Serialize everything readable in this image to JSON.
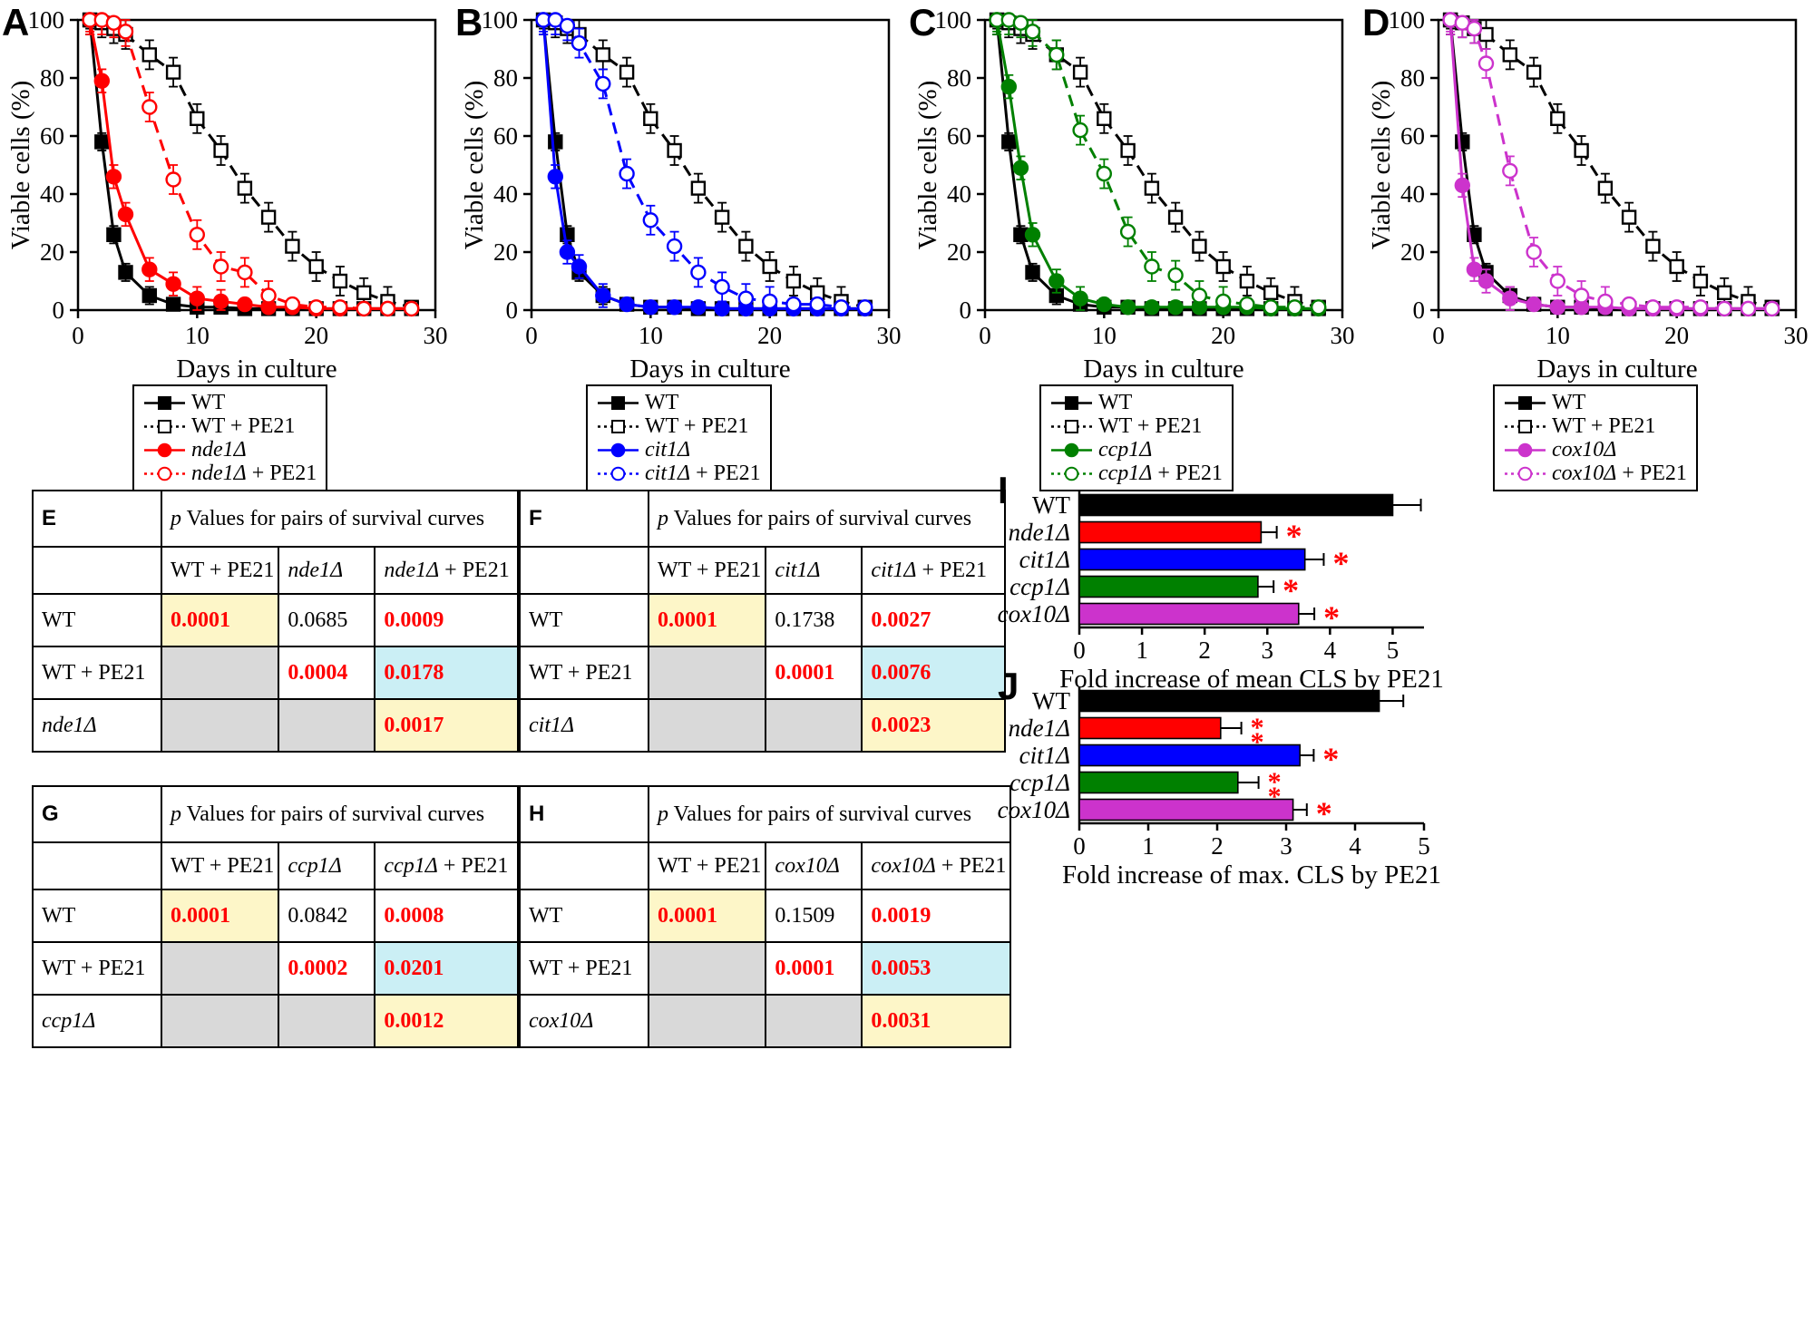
{
  "style": {
    "background": "#FFFFFF",
    "sig_color": "#FF0000",
    "table_yellow": "#FDF6C8",
    "table_cyan": "#CBEFF5",
    "table_gray": "#D9D9D9"
  },
  "chart_data": [
    {
      "type": "line",
      "panel": "A",
      "xlabel": "Days in culture",
      "ylabel": "Viable cells (%)",
      "xlim": [
        0,
        30
      ],
      "ylim": [
        0,
        100
      ],
      "xticks": [
        0,
        10,
        20,
        30
      ],
      "yticks": [
        0,
        20,
        40,
        60,
        80,
        100
      ],
      "x": [
        1,
        2,
        3,
        4,
        6,
        8,
        10,
        12,
        14,
        16,
        18,
        20,
        22,
        24,
        26,
        28
      ],
      "series": [
        {
          "label": {
            "r": "WT"
          },
          "color": "#000000",
          "marker": "square",
          "marker_fill": "filled",
          "line": "solid",
          "err": 3,
          "values": [
            100,
            58,
            26,
            13,
            5,
            2,
            1,
            1,
            0.5,
            0.5,
            0.5,
            0.5,
            0.5,
            0.5,
            0.5,
            0.5
          ]
        },
        {
          "label": {
            "r": "WT + PE21"
          },
          "color": "#000000",
          "marker": "square",
          "marker_fill": "open",
          "line": "dashed",
          "err": 5,
          "values": [
            100,
            99,
            97,
            95,
            88,
            82,
            66,
            55,
            42,
            32,
            22,
            15,
            10,
            6,
            3,
            1
          ]
        },
        {
          "label": {
            "i": "nde1Δ"
          },
          "color": "#FF0000",
          "marker": "circle",
          "marker_fill": "filled",
          "line": "solid",
          "err": 4,
          "values": [
            100,
            79,
            46,
            33,
            14,
            9,
            4,
            3,
            2,
            1,
            1,
            0.5,
            0.5,
            0.5,
            0.5,
            0.5
          ]
        },
        {
          "label": {
            "i": "nde1Δ",
            "r": " + PE21"
          },
          "color": "#FF0000",
          "marker": "circle",
          "marker_fill": "open",
          "line": "dashed",
          "err": 5,
          "values": [
            100,
            100,
            99,
            96,
            70,
            45,
            26,
            15,
            13,
            5,
            2,
            1,
            1,
            0.5,
            0.5,
            0.5
          ]
        }
      ]
    },
    {
      "type": "line",
      "panel": "B",
      "xlabel": "Days in culture",
      "ylabel": "Viable cells (%)",
      "xlim": [
        0,
        30
      ],
      "ylim": [
        0,
        100
      ],
      "xticks": [
        0,
        10,
        20,
        30
      ],
      "yticks": [
        0,
        20,
        40,
        60,
        80,
        100
      ],
      "x": [
        1,
        2,
        3,
        4,
        6,
        8,
        10,
        12,
        14,
        16,
        18,
        20,
        22,
        24,
        26,
        28
      ],
      "series": [
        {
          "label": {
            "r": "WT"
          },
          "color": "#000000",
          "marker": "square",
          "marker_fill": "filled",
          "line": "solid",
          "err": 3,
          "values": [
            100,
            58,
            26,
            13,
            5,
            2,
            1,
            1,
            0.5,
            0.5,
            0.5,
            0.5,
            0.5,
            0.5,
            0.5,
            0.5
          ]
        },
        {
          "label": {
            "r": "WT + PE21"
          },
          "color": "#000000",
          "marker": "square",
          "marker_fill": "open",
          "line": "dashed",
          "err": 5,
          "values": [
            100,
            99,
            97,
            95,
            88,
            82,
            66,
            55,
            42,
            32,
            22,
            15,
            10,
            6,
            3,
            1
          ]
        },
        {
          "label": {
            "i": "cit1Δ"
          },
          "color": "#0000FF",
          "marker": "circle",
          "marker_fill": "filled",
          "line": "solid",
          "err": 4,
          "values": [
            100,
            46,
            20,
            15,
            5,
            2,
            1,
            1,
            1,
            0.5,
            0.5,
            0.5,
            0.5,
            0.5,
            0.5,
            0.5
          ]
        },
        {
          "label": {
            "i": "cit1Δ",
            "r": " + PE21"
          },
          "color": "#0000FF",
          "marker": "circle",
          "marker_fill": "open",
          "line": "dashed",
          "err": 5,
          "values": [
            100,
            100,
            98,
            92,
            78,
            47,
            31,
            22,
            13,
            8,
            4,
            3,
            2,
            2,
            1,
            1
          ]
        }
      ]
    },
    {
      "type": "line",
      "panel": "C",
      "xlabel": "Days in culture",
      "ylabel": "Viable cells (%)",
      "xlim": [
        0,
        30
      ],
      "ylim": [
        0,
        100
      ],
      "xticks": [
        0,
        10,
        20,
        30
      ],
      "yticks": [
        0,
        20,
        40,
        60,
        80,
        100
      ],
      "x": [
        1,
        2,
        3,
        4,
        6,
        8,
        10,
        12,
        14,
        16,
        18,
        20,
        22,
        24,
        26,
        28
      ],
      "series": [
        {
          "label": {
            "r": "WT"
          },
          "color": "#000000",
          "marker": "square",
          "marker_fill": "filled",
          "line": "solid",
          "err": 3,
          "values": [
            100,
            58,
            26,
            13,
            5,
            2,
            1,
            1,
            0.5,
            0.5,
            0.5,
            0.5,
            0.5,
            0.5,
            0.5,
            0.5
          ]
        },
        {
          "label": {
            "r": "WT + PE21"
          },
          "color": "#000000",
          "marker": "square",
          "marker_fill": "open",
          "line": "dashed",
          "err": 5,
          "values": [
            100,
            99,
            97,
            95,
            88,
            82,
            66,
            55,
            42,
            32,
            22,
            15,
            10,
            6,
            3,
            1
          ]
        },
        {
          "label": {
            "i": "ccp1Δ"
          },
          "color": "#008000",
          "marker": "circle",
          "marker_fill": "filled",
          "line": "solid",
          "err": 4,
          "values": [
            100,
            77,
            49,
            26,
            10,
            4,
            2,
            1,
            1,
            1,
            1,
            1,
            1,
            0.5,
            0.5,
            0.5
          ]
        },
        {
          "label": {
            "i": "ccp1Δ",
            "r": " + PE21"
          },
          "color": "#008000",
          "marker": "circle",
          "marker_fill": "open",
          "line": "dashed",
          "err": 5,
          "values": [
            100,
            100,
            99,
            96,
            88,
            62,
            47,
            27,
            15,
            12,
            5,
            3,
            2,
            1,
            1,
            1
          ]
        }
      ]
    },
    {
      "type": "line",
      "panel": "D",
      "xlabel": "Days in culture",
      "ylabel": "Viable cells (%)",
      "xlim": [
        0,
        30
      ],
      "ylim": [
        0,
        100
      ],
      "xticks": [
        0,
        10,
        20,
        30
      ],
      "yticks": [
        0,
        20,
        40,
        60,
        80,
        100
      ],
      "x": [
        1,
        2,
        3,
        4,
        6,
        8,
        10,
        12,
        14,
        16,
        18,
        20,
        22,
        24,
        26,
        28
      ],
      "series": [
        {
          "label": {
            "r": "WT"
          },
          "color": "#000000",
          "marker": "square",
          "marker_fill": "filled",
          "line": "solid",
          "err": 3,
          "values": [
            100,
            58,
            26,
            13,
            5,
            2,
            1,
            1,
            0.5,
            0.5,
            0.5,
            0.5,
            0.5,
            0.5,
            0.5,
            0.5
          ]
        },
        {
          "label": {
            "r": "WT + PE21"
          },
          "color": "#000000",
          "marker": "square",
          "marker_fill": "open",
          "line": "dashed",
          "err": 5,
          "values": [
            100,
            99,
            97,
            95,
            88,
            82,
            66,
            55,
            42,
            32,
            22,
            15,
            10,
            6,
            3,
            1
          ]
        },
        {
          "label": {
            "i": "cox10Δ"
          },
          "color": "#CC33CC",
          "marker": "circle",
          "marker_fill": "filled",
          "line": "solid",
          "err": 4,
          "values": [
            100,
            43,
            14,
            10,
            4,
            2,
            1,
            1,
            1,
            0.5,
            0.5,
            0.5,
            0.5,
            0.5,
            0.5,
            0.5
          ]
        },
        {
          "label": {
            "i": "cox10Δ",
            "r": " + PE21"
          },
          "color": "#CC33CC",
          "marker": "circle",
          "marker_fill": "open",
          "line": "dashed",
          "err": 5,
          "values": [
            100,
            99,
            97,
            85,
            48,
            20,
            10,
            5,
            3,
            2,
            1,
            1,
            1,
            0.5,
            0.5,
            0.5
          ]
        }
      ]
    },
    {
      "type": "bar",
      "panel": "I",
      "orientation": "horizontal",
      "xlabel": "Fold increase of mean CLS by PE21",
      "xlim": [
        0,
        5.5
      ],
      "xticks": [
        0,
        1,
        2,
        3,
        4,
        5
      ],
      "categories": [
        {
          "r": "WT"
        },
        {
          "i": "nde1Δ"
        },
        {
          "i": "cit1Δ"
        },
        {
          "i": "ccp1Δ"
        },
        {
          "i": "cox10Δ"
        }
      ],
      "values": [
        5.0,
        2.9,
        3.6,
        2.85,
        3.5
      ],
      "errors": [
        0.45,
        0.25,
        0.3,
        0.25,
        0.25
      ],
      "stars": [
        "",
        "*",
        "*",
        "*",
        "*"
      ],
      "bar_colors": [
        "#000000",
        "#FF0000",
        "#0000FF",
        "#008000",
        "#CC33CC"
      ]
    },
    {
      "type": "bar",
      "panel": "J",
      "orientation": "horizontal",
      "xlabel": "Fold increase of max. CLS by PE21",
      "xlim": [
        0,
        5
      ],
      "xticks": [
        0,
        1,
        2,
        3,
        4,
        5
      ],
      "categories": [
        {
          "r": "WT"
        },
        {
          "i": "nde1Δ"
        },
        {
          "i": "cit1Δ"
        },
        {
          "i": "ccp1Δ"
        },
        {
          "i": "cox10Δ"
        }
      ],
      "values": [
        4.35,
        2.05,
        3.2,
        2.3,
        3.1
      ],
      "errors": [
        0.35,
        0.3,
        0.2,
        0.3,
        0.2
      ],
      "stars": [
        "",
        "**",
        "*",
        "**",
        "*"
      ],
      "bar_colors": [
        "#000000",
        "#FF0000",
        "#0000FF",
        "#008000",
        "#CC33CC"
      ]
    },
    {
      "type": "table",
      "panel": "E",
      "title": [
        {
          "t": "p",
          "i": true
        },
        {
          "t": " Values for pairs of survival curves"
        }
      ],
      "columns": [
        {
          "r": "WT + PE21"
        },
        {
          "i": "nde1Δ"
        },
        {
          "i": "nde1Δ",
          "r": " + PE21"
        }
      ],
      "rows": [
        {
          "header": {
            "r": "WT"
          },
          "cells": [
            {
              "v": "0.0001",
              "sig": true,
              "bg": "yellow"
            },
            {
              "v": "0.0685"
            },
            {
              "v": "0.0009",
              "sig": true
            }
          ]
        },
        {
          "header": {
            "r": "WT + PE21"
          },
          "cells": [
            {
              "bg": "gray"
            },
            {
              "v": "0.0004",
              "sig": true
            },
            {
              "v": "0.0178",
              "sig": true,
              "bg": "cyan"
            }
          ]
        },
        {
          "header": {
            "i": "nde1Δ"
          },
          "cells": [
            {
              "bg": "gray"
            },
            {
              "bg": "gray"
            },
            {
              "v": "0.0017",
              "sig": true,
              "bg": "yellow"
            }
          ]
        }
      ]
    },
    {
      "type": "table",
      "panel": "F",
      "title": [
        {
          "t": "p",
          "i": true
        },
        {
          "t": " Values for pairs of survival curves"
        }
      ],
      "columns": [
        {
          "r": "WT + PE21"
        },
        {
          "i": "cit1Δ"
        },
        {
          "i": "cit1Δ",
          "r": " + PE21"
        }
      ],
      "rows": [
        {
          "header": {
            "r": "WT"
          },
          "cells": [
            {
              "v": "0.0001",
              "sig": true,
              "bg": "yellow"
            },
            {
              "v": "0.1738"
            },
            {
              "v": "0.0027",
              "sig": true
            }
          ]
        },
        {
          "header": {
            "r": "WT + PE21"
          },
          "cells": [
            {
              "bg": "gray"
            },
            {
              "v": "0.0001",
              "sig": true
            },
            {
              "v": "0.0076",
              "sig": true,
              "bg": "cyan"
            }
          ]
        },
        {
          "header": {
            "i": "cit1Δ"
          },
          "cells": [
            {
              "bg": "gray"
            },
            {
              "bg": "gray"
            },
            {
              "v": "0.0023",
              "sig": true,
              "bg": "yellow"
            }
          ]
        }
      ]
    },
    {
      "type": "table",
      "panel": "G",
      "title": [
        {
          "t": "p",
          "i": true
        },
        {
          "t": " Values for pairs of survival curves"
        }
      ],
      "columns": [
        {
          "r": "WT + PE21"
        },
        {
          "i": "ccp1Δ"
        },
        {
          "i": "ccp1Δ",
          "r": " + PE21"
        }
      ],
      "rows": [
        {
          "header": {
            "r": "WT"
          },
          "cells": [
            {
              "v": "0.0001",
              "sig": true,
              "bg": "yellow"
            },
            {
              "v": "0.0842"
            },
            {
              "v": "0.0008",
              "sig": true
            }
          ]
        },
        {
          "header": {
            "r": "WT + PE21"
          },
          "cells": [
            {
              "bg": "gray"
            },
            {
              "v": "0.0002",
              "sig": true
            },
            {
              "v": "0.0201",
              "sig": true,
              "bg": "cyan"
            }
          ]
        },
        {
          "header": {
            "i": "ccp1Δ"
          },
          "cells": [
            {
              "bg": "gray"
            },
            {
              "bg": "gray"
            },
            {
              "v": "0.0012",
              "sig": true,
              "bg": "yellow"
            }
          ]
        }
      ]
    },
    {
      "type": "table",
      "panel": "H",
      "title": [
        {
          "t": "p",
          "i": true
        },
        {
          "t": " Values for pairs of survival curves"
        }
      ],
      "columns": [
        {
          "r": "WT + PE21"
        },
        {
          "i": "cox10Δ"
        },
        {
          "i": "cox10Δ",
          "r": " + PE21"
        }
      ],
      "rows": [
        {
          "header": {
            "r": "WT"
          },
          "cells": [
            {
              "v": "0.0001",
              "sig": true,
              "bg": "yellow"
            },
            {
              "v": "0.1509"
            },
            {
              "v": "0.0019",
              "sig": true
            }
          ]
        },
        {
          "header": {
            "r": "WT + PE21"
          },
          "cells": [
            {
              "bg": "gray"
            },
            {
              "v": "0.0001",
              "sig": true
            },
            {
              "v": "0.0053",
              "sig": true,
              "bg": "cyan"
            }
          ]
        },
        {
          "header": {
            "i": "cox10Δ"
          },
          "cells": [
            {
              "bg": "gray"
            },
            {
              "bg": "gray"
            },
            {
              "v": "0.0031",
              "sig": true,
              "bg": "yellow"
            }
          ]
        }
      ]
    }
  ]
}
